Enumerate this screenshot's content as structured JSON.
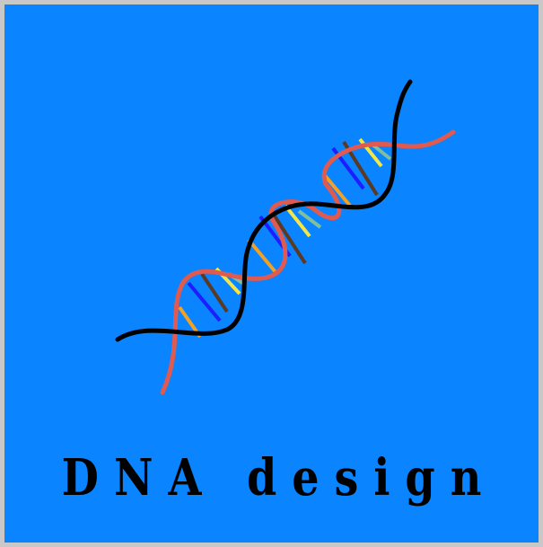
{
  "logo": {
    "title": "DNA design",
    "colors": {
      "background": "#0a84ff",
      "border": "#c8c8c8",
      "strand_black": "#000000",
      "strand_red": "#e05a4f",
      "base_blue": "#1d1dff",
      "base_yellow": "#f5e641",
      "base_brown": "#5a3a23",
      "base_orange": "#f2a125",
      "base_teal": "#7fbfa0"
    },
    "icon": "dna-helix-icon"
  }
}
